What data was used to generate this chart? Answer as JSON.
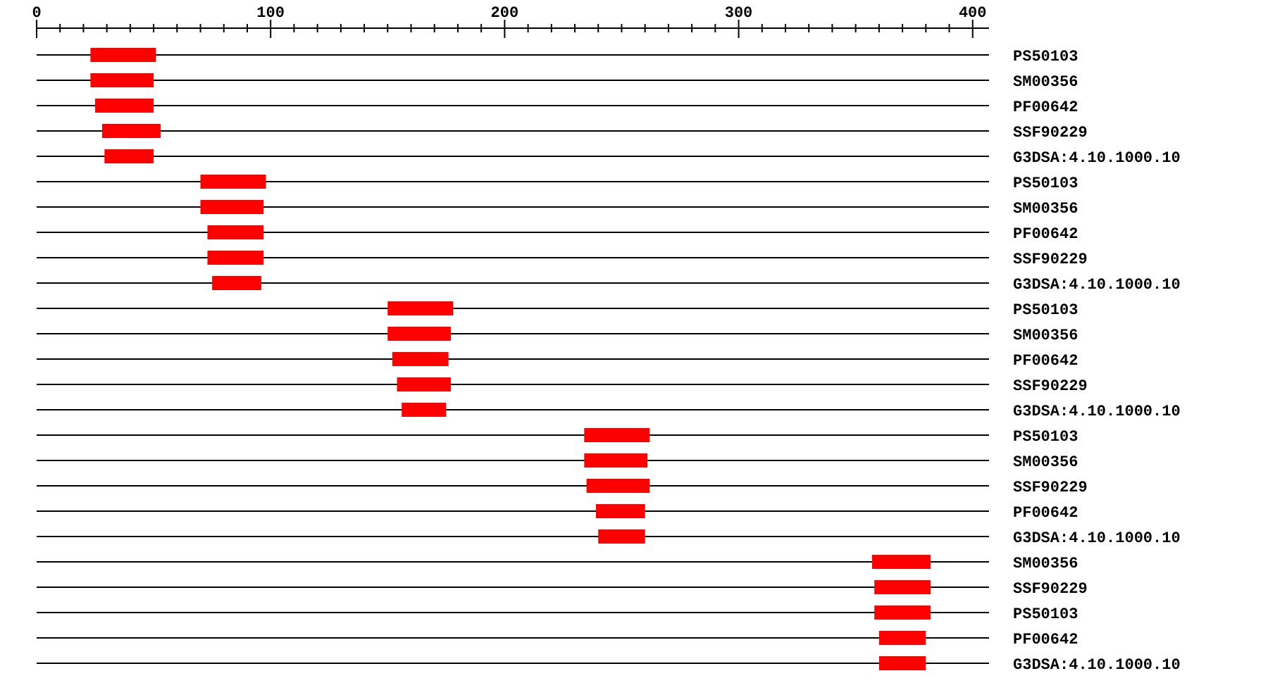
{
  "chart_data": {
    "type": "bar",
    "orientation": "horizontal",
    "categories": [
      "PS50103",
      "SM00356",
      "PF00642",
      "SSF90229",
      "G3DSA:4.10.1000.10",
      "PS50103",
      "SM00356",
      "PF00642",
      "SSF90229",
      "G3DSA:4.10.1000.10",
      "PS50103",
      "SM00356",
      "PF00642",
      "SSF90229",
      "G3DSA:4.10.1000.10",
      "PS50103",
      "SM00356",
      "SSF90229",
      "PF00642",
      "G3DSA:4.10.1000.10",
      "SM00356",
      "SSF90229",
      "PS50103",
      "PF00642",
      "G3DSA:4.10.1000.10"
    ],
    "base": [
      23,
      23,
      25,
      28,
      29,
      70,
      70,
      73,
      73,
      75,
      150,
      150,
      152,
      154,
      156,
      234,
      234,
      235,
      239,
      240,
      357,
      358,
      358,
      360,
      360
    ],
    "values": [
      28,
      27,
      25,
      25,
      21,
      28,
      27,
      24,
      24,
      21,
      28,
      27,
      24,
      23,
      19,
      28,
      27,
      27,
      21,
      20,
      25,
      24,
      24,
      20,
      20
    ],
    "color": "#ff0000",
    "xlim": [
      0,
      407
    ],
    "xticks": [
      0,
      {
        "value": 10,
        "label": null
      },
      {
        "value": 20,
        "label": null
      },
      {
        "value": 30,
        "label": null
      },
      {
        "value": 40,
        "label": null
      },
      {
        "value": 50,
        "label": null
      },
      {
        "value": 60,
        "label": null
      },
      {
        "value": 70,
        "label": null
      },
      {
        "value": 80,
        "label": null
      },
      {
        "value": 90,
        "label": null
      },
      100,
      {
        "value": 110,
        "label": null
      },
      {
        "value": 120,
        "label": null
      },
      {
        "value": 130,
        "label": null
      },
      {
        "value": 140,
        "label": null
      },
      {
        "value": 150,
        "label": null
      },
      {
        "value": 160,
        "label": null
      },
      {
        "value": 170,
        "label": null
      },
      {
        "value": 180,
        "label": null
      },
      {
        "value": 190,
        "label": null
      },
      200,
      {
        "value": 210,
        "label": null
      },
      {
        "value": 220,
        "label": null
      },
      {
        "value": 230,
        "label": null
      },
      {
        "value": 240,
        "label": null
      },
      {
        "value": 250,
        "label": null
      },
      {
        "value": 260,
        "label": null
      },
      {
        "value": 270,
        "label": null
      },
      {
        "value": 280,
        "label": null
      },
      {
        "value": 290,
        "label": null
      },
      300,
      {
        "value": 310,
        "label": null
      },
      {
        "value": 320,
        "label": null
      },
      {
        "value": 330,
        "label": null
      },
      {
        "value": 340,
        "label": null
      },
      {
        "value": 350,
        "label": null
      },
      {
        "value": 360,
        "label": null
      },
      {
        "value": 370,
        "label": null
      },
      {
        "value": 380,
        "label": null
      },
      {
        "value": 390,
        "label": null
      },
      400
    ],
    "grid": "y"
  }
}
